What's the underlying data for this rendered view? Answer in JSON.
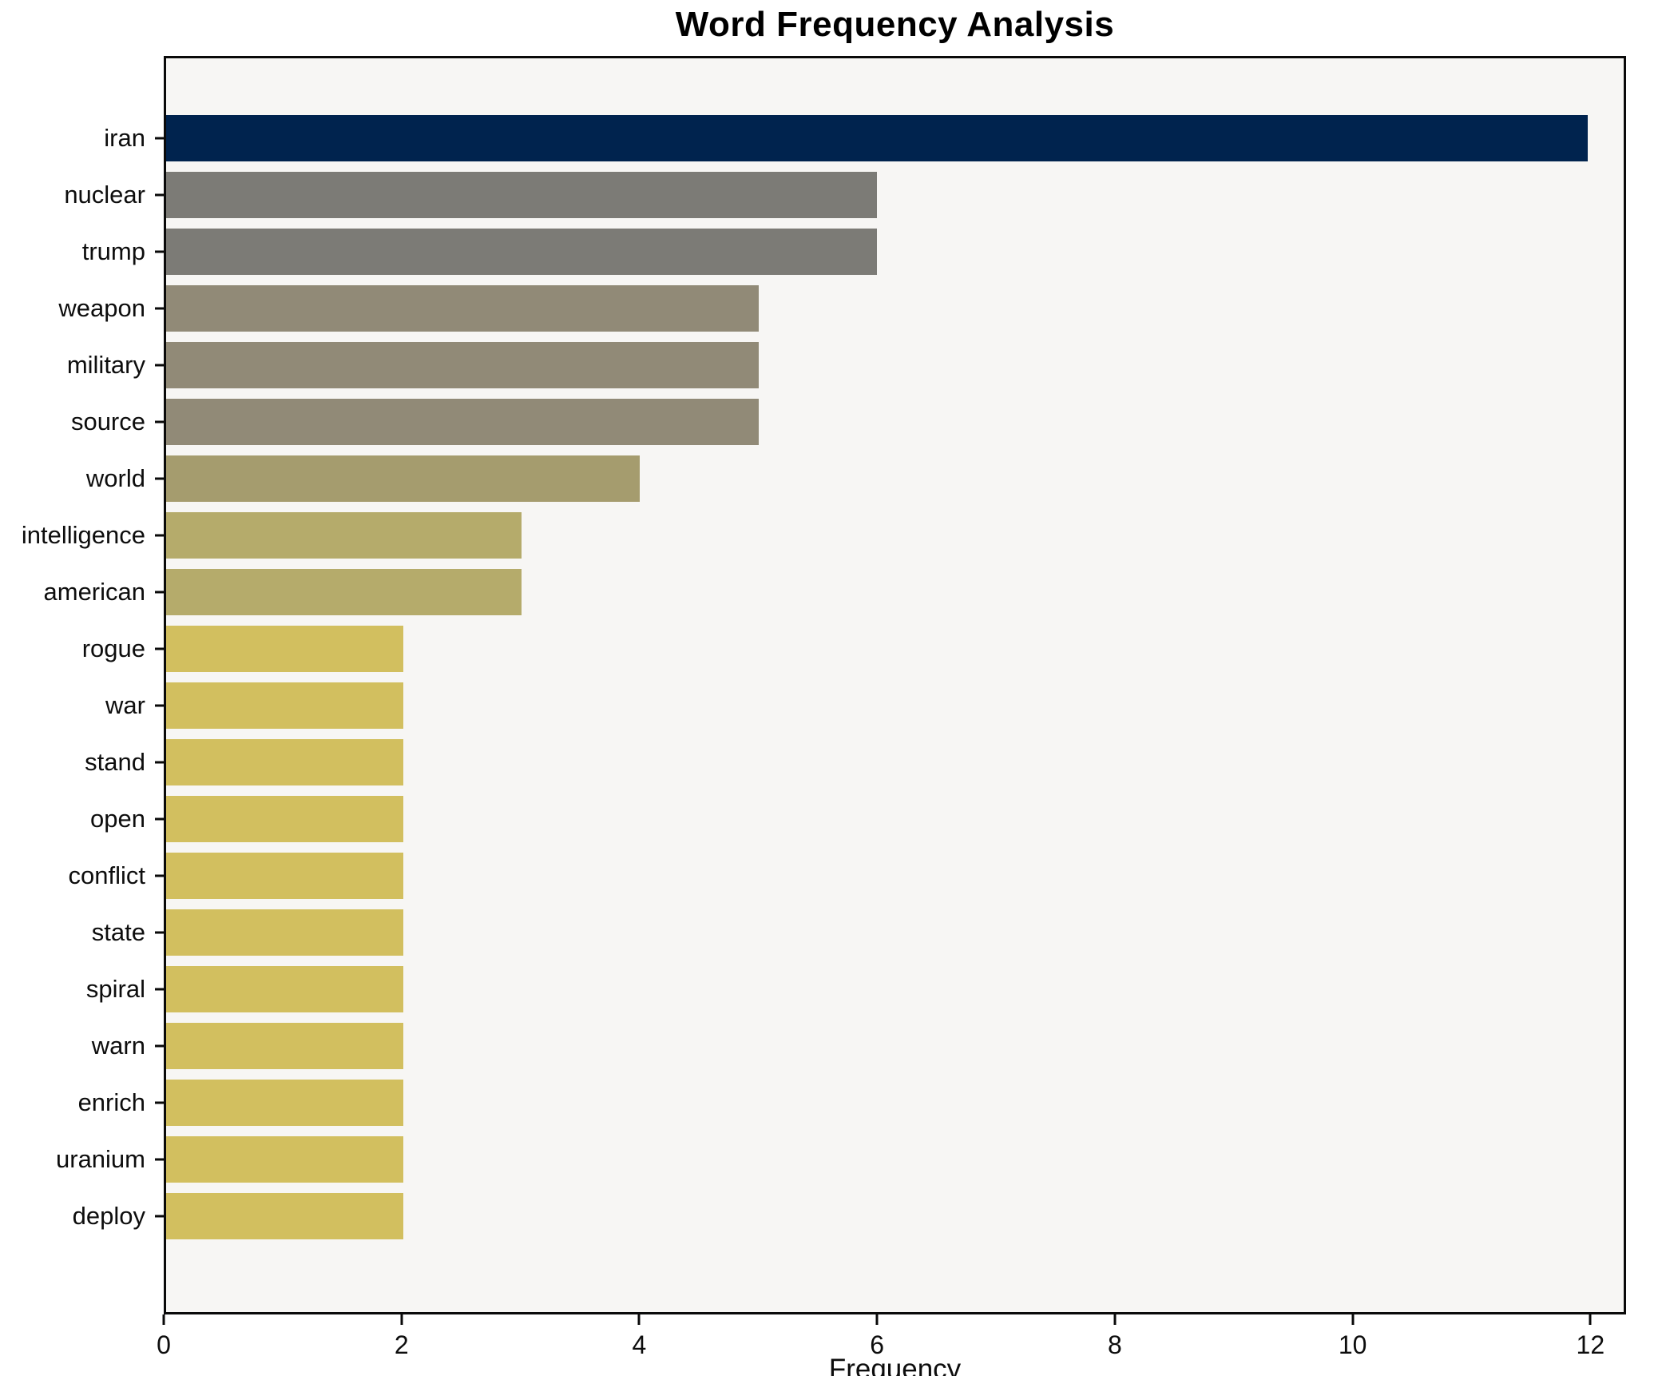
{
  "title": "Word Frequency Analysis",
  "xlabel": "Frequency",
  "colors": {
    "plot_background": "#f7f6f4",
    "page_background": "#ffffff",
    "frame": "#0a0a0a",
    "text": "#0d0d0d",
    "bar_max": "#00234e",
    "bar_min": "#d2bf5f"
  },
  "chart_data": {
    "type": "bar",
    "orientation": "horizontal",
    "title": "Word Frequency Analysis",
    "xlabel": "Frequency",
    "ylabel": "",
    "grid": false,
    "legend": false,
    "xlim": [
      0,
      12.3
    ],
    "xticks": [
      0,
      2,
      4,
      6,
      8,
      10,
      12
    ],
    "xtick_labels": [
      "0",
      "2",
      "4",
      "6",
      "8",
      "10",
      "12"
    ],
    "categories": [
      "iran",
      "nuclear",
      "trump",
      "weapon",
      "military",
      "source",
      "world",
      "intelligence",
      "american",
      "rogue",
      "war",
      "stand",
      "open",
      "conflict",
      "state",
      "spiral",
      "warn",
      "enrich",
      "uranium",
      "deploy"
    ],
    "values": [
      12,
      6,
      6,
      5,
      5,
      5,
      4,
      3,
      3,
      2,
      2,
      2,
      2,
      2,
      2,
      2,
      2,
      2,
      2,
      2
    ],
    "bar_colors": [
      "#00234e",
      "#7c7b76",
      "#7c7b76",
      "#918a77",
      "#918a77",
      "#918a77",
      "#a59c6e",
      "#b5ab6b",
      "#b5ab6b",
      "#d2bf5f",
      "#d2bf5f",
      "#d2bf5f",
      "#d2bf5f",
      "#d2bf5f",
      "#d2bf5f",
      "#d2bf5f",
      "#d2bf5f",
      "#d2bf5f",
      "#d2bf5f",
      "#d2bf5f"
    ]
  }
}
